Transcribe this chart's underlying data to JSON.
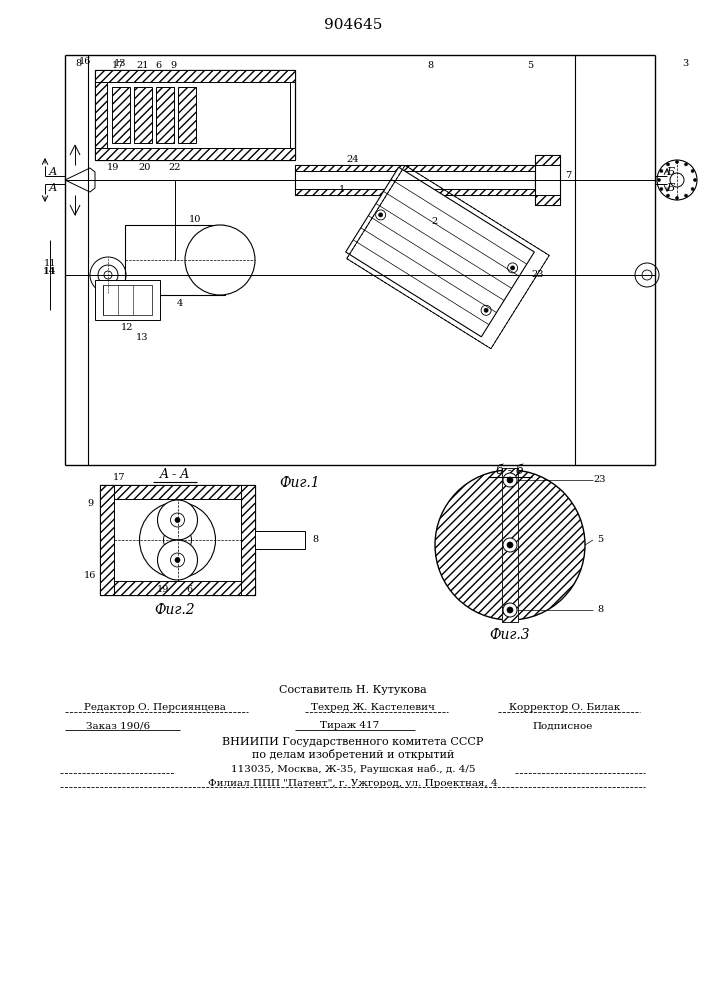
{
  "title": "904645",
  "fig1_caption": "Фиг.1",
  "fig2_caption": "Фиг.2",
  "fig3_caption": "Фиг.3",
  "section_aa": "A - A",
  "section_bb": "б - б",
  "footer_line1": "Составитель Н. Кутукова",
  "footer_ed": "Редактор О. Персиянцева",
  "footer_tech": "Техред Ж. Кастелевич",
  "footer_corr": "Корректор О. Билак",
  "footer_order": "Заказ 190/6",
  "footer_print": "Тираж 417",
  "footer_sub": "Подписное",
  "footer_org": "ВНИИПИ Государственного комитета СССР",
  "footer_dept": "по делам изобретений и открытий",
  "footer_addr": "113035, Москва, Ж-35, Раушская наб., д. 4/5",
  "footer_branch": "Филиал ППП \"Патент\", г. Ужгород, ул. Проектная, 4",
  "lc": "#000000",
  "bg": "#ffffff"
}
